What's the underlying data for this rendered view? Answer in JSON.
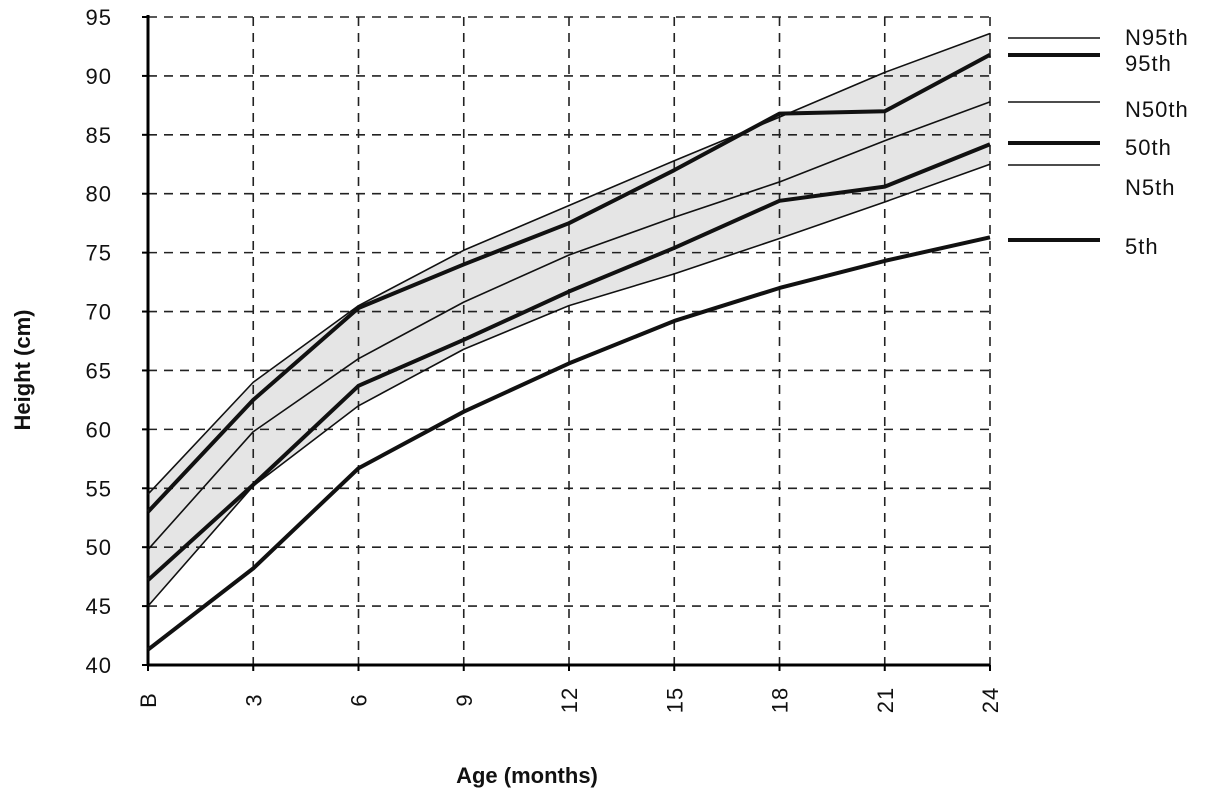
{
  "chart_data": {
    "type": "line",
    "xlabel": "Age (months)",
    "ylabel": "Height (cm)",
    "categories": [
      "B",
      "3",
      "6",
      "9",
      "12",
      "15",
      "18",
      "21",
      "24"
    ],
    "yticks": [
      40,
      45,
      50,
      55,
      60,
      65,
      70,
      75,
      80,
      85,
      90,
      95
    ],
    "ylim": [
      40,
      95
    ],
    "grid": true,
    "legend_position": "right",
    "shaded_band": {
      "between": [
        "N95th",
        "N5th"
      ],
      "color": "#cfcfcf"
    },
    "series": [
      {
        "name": "N95th",
        "weight": "thin",
        "values": [
          54.5,
          64.0,
          70.5,
          75.2,
          79.0,
          82.8,
          86.5,
          90.3,
          93.6
        ]
      },
      {
        "name": "95th",
        "weight": "thick",
        "values": [
          53.0,
          62.5,
          70.3,
          74.0,
          77.5,
          82.0,
          86.8,
          87.0,
          91.8
        ]
      },
      {
        "name": "N50th",
        "weight": "thin",
        "values": [
          49.8,
          59.8,
          66.0,
          70.8,
          74.8,
          78.0,
          81.0,
          84.5,
          87.8
        ]
      },
      {
        "name": "50th",
        "weight": "thick",
        "values": [
          47.2,
          55.3,
          63.7,
          67.6,
          71.7,
          75.4,
          79.4,
          80.6,
          84.2
        ]
      },
      {
        "name": "N5th",
        "weight": "thin",
        "values": [
          45.0,
          55.2,
          62.0,
          66.8,
          70.5,
          73.2,
          76.2,
          79.3,
          82.5
        ]
      },
      {
        "name": "5th",
        "weight": "thick",
        "values": [
          41.3,
          48.2,
          56.7,
          61.5,
          65.6,
          69.2,
          72.0,
          74.3,
          76.3
        ]
      }
    ]
  }
}
